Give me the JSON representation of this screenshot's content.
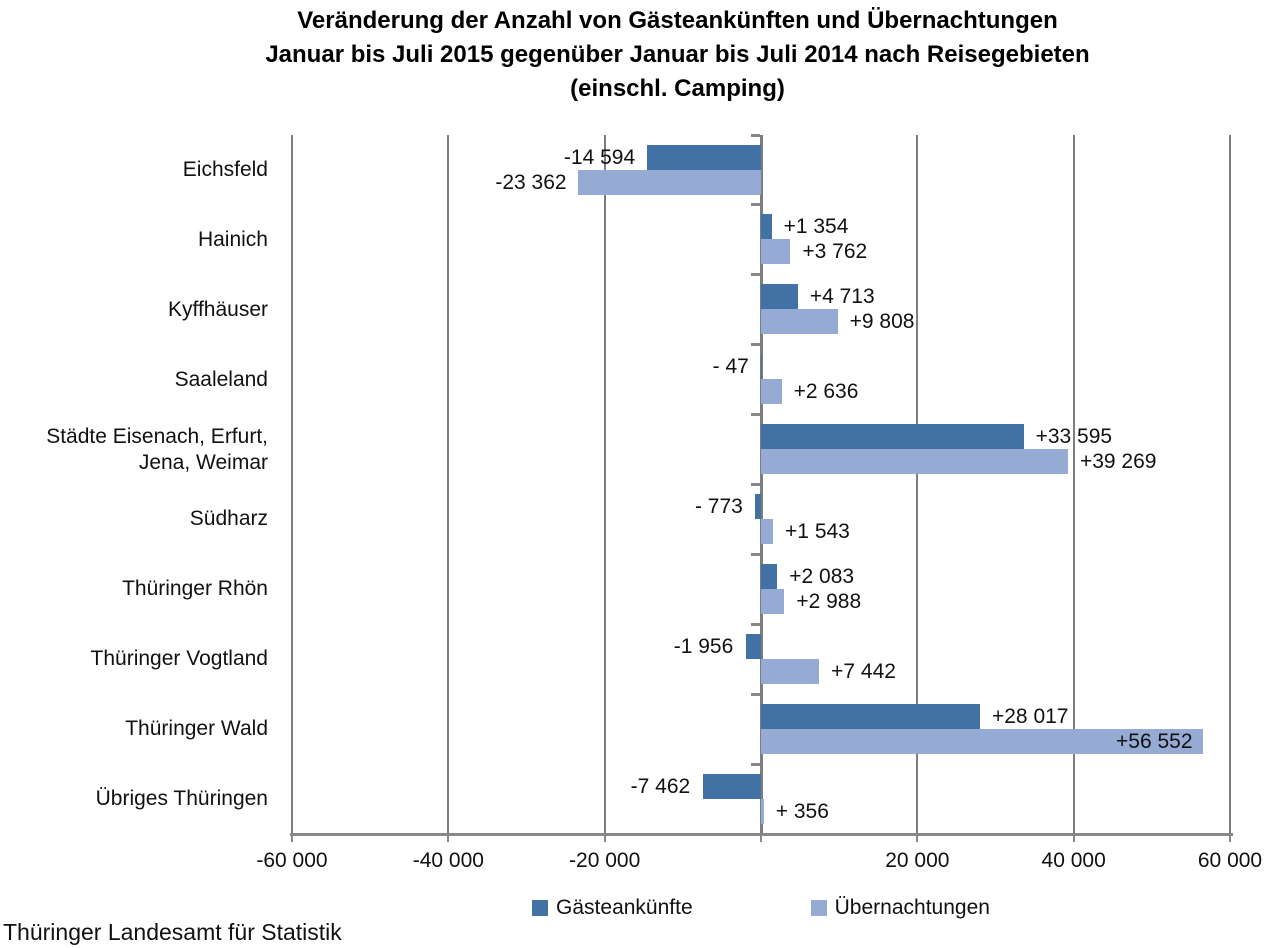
{
  "title": {
    "line1": "Veränderung der Anzahl von Gästeankünften und Übernachtungen",
    "line2": "Januar bis Juli 2015 gegenüber Januar bis Juli 2014 nach Reisegebieten",
    "line3": "(einschl. Camping)"
  },
  "source": "Thüringer Landesamt für Statistik",
  "legend": {
    "position": "bottom",
    "items": [
      {
        "label": "Gästeankünfte",
        "color": "#4271A6"
      },
      {
        "label": "Übernachtungen",
        "color": "#95ABD4"
      }
    ]
  },
  "chart_data": {
    "type": "bar",
    "orientation": "horizontal",
    "title": "Veränderung der Anzahl von Gästeankünften und Übernachtungen Januar bis Juli 2015 gegenüber Januar bis Juli 2014 nach Reisegebieten (einschl. Camping)",
    "categories": [
      "Eichsfeld",
      "Hainich",
      "Kyffhäuser",
      "Saaleland",
      "Städte Eisenach, Erfurt,\nJena, Weimar",
      "Südharz",
      "Thüringer Rhön",
      "Thüringer Vogtland",
      "Thüringer Wald",
      "Übriges Thüringen"
    ],
    "series": [
      {
        "name": "Gästeankünfte",
        "color": "#4271A6",
        "values": [
          -14594,
          1354,
          4713,
          -47,
          33595,
          -773,
          2083,
          -1956,
          28017,
          -7462
        ],
        "labels": [
          "-14 594",
          "+1 354",
          "+4 713",
          "- 47",
          "+33 595",
          "- 773",
          "+2 083",
          "-1 956",
          "+28 017",
          "-7 462"
        ]
      },
      {
        "name": "Übernachtungen",
        "color": "#95ABD4",
        "values": [
          -23362,
          3762,
          9808,
          2636,
          39269,
          1543,
          2988,
          7442,
          56552,
          356
        ],
        "labels": [
          "-23 362",
          "+3 762",
          "+9 808",
          "+2 636",
          "+39 269",
          "+1 543",
          "+2 988",
          "+7 442",
          "+56 552",
          "+ 356"
        ]
      }
    ],
    "xlim": [
      -60000,
      60000
    ],
    "x_ticks": [
      {
        "value": -60000,
        "label": "-60 000"
      },
      {
        "value": -40000,
        "label": "-40 000"
      },
      {
        "value": -20000,
        "label": "-20 000"
      },
      {
        "value": 0,
        "label": ""
      },
      {
        "value": 20000,
        "label": "20 000"
      },
      {
        "value": 40000,
        "label": "40 000"
      },
      {
        "value": 60000,
        "label": "60 000"
      }
    ],
    "grid": "vertical",
    "legend_position": "bottom"
  }
}
